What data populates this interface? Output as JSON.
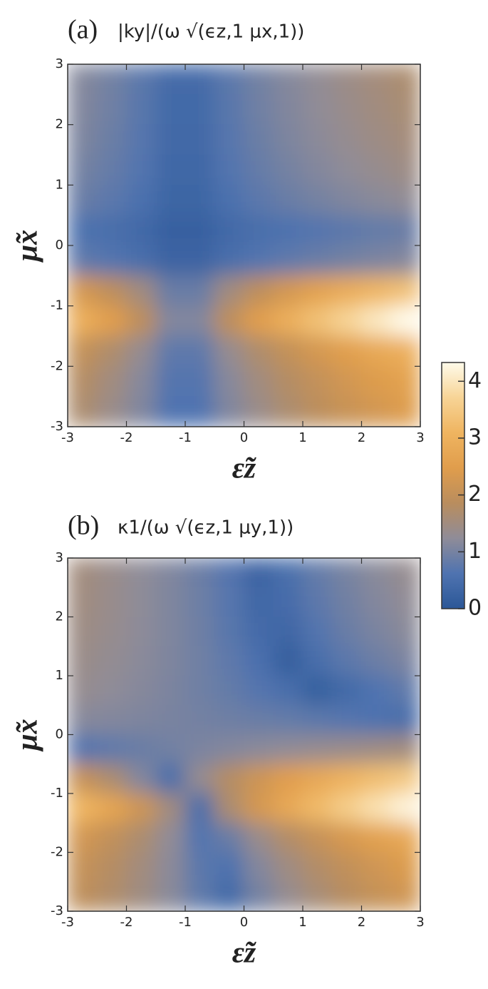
{
  "chart_data": [
    {
      "type": "heatmap",
      "panel_label": "(a)",
      "title": "|ky|/(ω √(ϵz,1 μx,1))",
      "xlabel": "ε̃z",
      "ylabel": "μ̃x",
      "xlim": [
        -3,
        3
      ],
      "ylim": [
        -3,
        3
      ],
      "xticks": [
        -3,
        -2,
        -1,
        0,
        1,
        2,
        3
      ],
      "yticks": [
        -3,
        -2,
        -1,
        0,
        1,
        2,
        3
      ],
      "x": [
        -2.75,
        -2.25,
        -1.75,
        -1.25,
        -0.75,
        -0.25,
        0.25,
        0.75,
        1.25,
        1.75,
        2.25,
        2.75
      ],
      "y": [
        2.75,
        2.25,
        1.75,
        1.25,
        0.75,
        0.25,
        -0.25,
        -0.75,
        -1.25,
        -1.75,
        -2.25,
        -2.75
      ],
      "values": [
        [
          1.13,
          0.96,
          0.74,
          0.43,
          0.43,
          0.74,
          0.96,
          1.13,
          1.28,
          1.42,
          1.54,
          1.66
        ],
        [
          1.1,
          0.93,
          0.72,
          0.42,
          0.42,
          0.72,
          0.93,
          1.1,
          1.25,
          1.38,
          1.5,
          1.61
        ],
        [
          1.06,
          0.89,
          0.69,
          0.4,
          0.4,
          0.69,
          0.89,
          1.06,
          1.2,
          1.32,
          1.44,
          1.54
        ],
        [
          0.99,
          0.83,
          0.65,
          0.37,
          0.37,
          0.65,
          0.83,
          0.99,
          1.12,
          1.24,
          1.34,
          1.44
        ],
        [
          0.87,
          0.73,
          0.57,
          0.33,
          0.33,
          0.57,
          0.73,
          0.87,
          0.98,
          1.09,
          1.18,
          1.27
        ],
        [
          0.59,
          0.5,
          0.39,
          0.22,
          0.22,
          0.39,
          0.5,
          0.59,
          0.67,
          0.74,
          0.81,
          0.87
        ],
        [
          0.76,
          0.65,
          0.5,
          0.29,
          0.29,
          0.5,
          0.65,
          0.76,
          0.87,
          0.96,
          1.04,
          1.12
        ],
        [
          2.29,
          1.94,
          1.5,
          0.87,
          0.87,
          1.5,
          1.94,
          2.29,
          2.6,
          2.87,
          3.12,
          3.35
        ],
        [
          2.96,
          2.5,
          1.94,
          1.12,
          1.12,
          1.94,
          2.5,
          2.96,
          3.35,
          3.71,
          4.03,
          4.33
        ],
        [
          2.02,
          1.71,
          1.32,
          0.76,
          0.76,
          1.32,
          1.71,
          2.02,
          2.29,
          2.53,
          2.76,
          2.96
        ],
        [
          1.78,
          1.5,
          1.16,
          0.67,
          0.67,
          1.16,
          1.5,
          1.78,
          2.01,
          2.23,
          2.42,
          2.6
        ],
        [
          1.66,
          1.4,
          1.09,
          0.63,
          0.63,
          1.09,
          1.4,
          1.66,
          1.88,
          2.08,
          2.26,
          2.43
        ]
      ]
    },
    {
      "type": "heatmap",
      "panel_label": "(b)",
      "title": "κ1/(ω √(ϵz,1 μy,1))",
      "xlabel": "ε̃z",
      "ylabel": "μ̃x",
      "xlim": [
        -3,
        3
      ],
      "ylim": [
        -3,
        3
      ],
      "xticks": [
        -3,
        -2,
        -1,
        0,
        1,
        2,
        3
      ],
      "yticks": [
        -3,
        -2,
        -1,
        0,
        1,
        2,
        3
      ],
      "x": [
        -2.75,
        -2.25,
        -1.75,
        -1.25,
        -0.75,
        -0.25,
        0.25,
        0.75,
        1.25,
        1.75,
        2.25,
        2.75
      ],
      "y": [
        2.75,
        2.25,
        1.75,
        1.25,
        0.75,
        0.25,
        -0.25,
        -0.75,
        -1.25,
        -1.75,
        -2.25,
        -2.75
      ],
      "values": [
        [
          1.51,
          1.38,
          1.24,
          1.09,
          0.9,
          0.67,
          0.29,
          0.53,
          0.81,
          1.01,
          1.18,
          1.32
        ],
        [
          1.49,
          1.37,
          1.23,
          1.08,
          0.91,
          0.69,
          0.37,
          0.46,
          0.75,
          0.95,
          1.12,
          1.26
        ],
        [
          1.45,
          1.34,
          1.22,
          1.08,
          0.92,
          0.72,
          0.45,
          0.34,
          0.66,
          0.87,
          1.03,
          1.18
        ],
        [
          1.4,
          1.3,
          1.19,
          1.07,
          0.93,
          0.76,
          0.55,
          0.17,
          0.5,
          0.73,
          0.9,
          1.04
        ],
        [
          1.32,
          1.24,
          1.15,
          1.05,
          0.94,
          0.82,
          0.68,
          0.5,
          0.19,
          0.42,
          0.63,
          0.78
        ],
        [
          1.16,
          1.12,
          1.07,
          1.02,
          0.97,
          0.92,
          0.87,
          0.81,
          0.74,
          0.67,
          0.59,
          0.5
        ],
        [
          0.65,
          0.76,
          0.87,
          0.96,
          1.04,
          1.12,
          1.19,
          1.26,
          1.32,
          1.38,
          1.44,
          1.5
        ],
        [
          2.06,
          1.66,
          1.12,
          0.5,
          1.32,
          1.8,
          2.18,
          2.5,
          2.78,
          3.04,
          3.28,
          3.5
        ],
        [
          3.12,
          2.69,
          2.18,
          1.5,
          0.5,
          1.66,
          2.29,
          2.78,
          3.2,
          3.57,
          3.91,
          4.21
        ],
        [
          2.25,
          1.98,
          1.66,
          1.26,
          0.65,
          0.87,
          1.38,
          1.76,
          2.06,
          2.33,
          2.57,
          2.78
        ],
        [
          2.04,
          1.8,
          1.53,
          1.2,
          0.74,
          0.59,
          1.12,
          1.47,
          1.75,
          1.99,
          2.2,
          2.4
        ],
        [
          1.94,
          1.72,
          1.48,
          1.18,
          0.78,
          0.42,
          0.98,
          1.32,
          1.59,
          1.82,
          2.03,
          2.21
        ]
      ]
    }
  ],
  "colorbar": {
    "lim": [
      0,
      4.33
    ],
    "ticks": [
      0,
      1,
      2,
      3,
      4
    ],
    "colors": [
      "#2b5797",
      "#4f73b0",
      "#8f8c98",
      "#b98d5e",
      "#e09d4c",
      "#efb460",
      "#f7d496",
      "#fffbea"
    ]
  }
}
